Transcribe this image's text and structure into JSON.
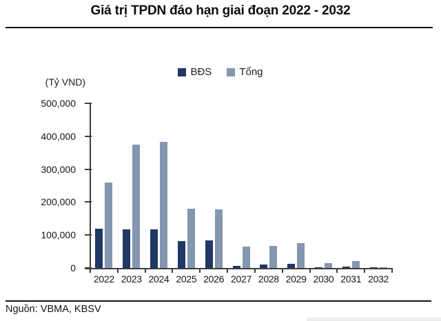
{
  "header": {
    "title": "Giá trị TPDN đáo hạn giai đoạn 2022 - 2032"
  },
  "chart_data": {
    "type": "bar",
    "title": "Giá trị TPDN đáo hạn giai đoạn 2022 - 2032",
    "unit_label": "(Tỷ VND)",
    "categories": [
      "2022",
      "2023",
      "2024",
      "2025",
      "2026",
      "2027",
      "2028",
      "2029",
      "2030",
      "2031",
      "2032"
    ],
    "series": [
      {
        "name": "BĐS",
        "color": "#1f3864",
        "values": [
          120000,
          117000,
          118000,
          81000,
          84000,
          6000,
          10000,
          13000,
          1000,
          5000,
          1000
        ]
      },
      {
        "name": "Tổng",
        "color": "#8496b0",
        "values": [
          260000,
          375000,
          382000,
          180000,
          177000,
          64000,
          67000,
          76000,
          15000,
          20000,
          2500
        ]
      }
    ],
    "ylim": [
      0,
      500000
    ],
    "ytick_step": 100000,
    "ytick_labels": [
      "0",
      "100,000",
      "200,000",
      "300,000",
      "400,000",
      "500,000"
    ],
    "legend_position": "top",
    "grid": false,
    "axis_color": "#3d3d3d"
  },
  "footer": {
    "source": "Nguồn: VBMA, KBSV"
  }
}
